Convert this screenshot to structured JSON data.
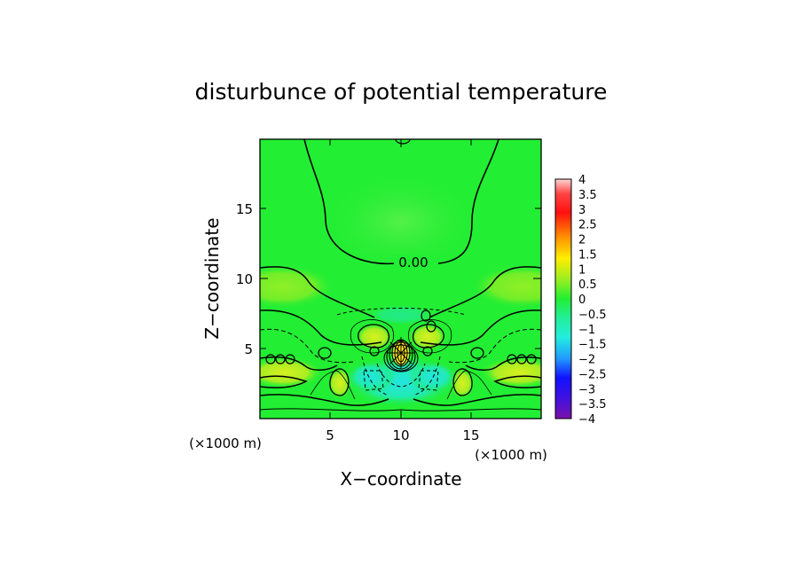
{
  "chart_data": {
    "type": "heatmap",
    "title": "disturbunce of potential temperature",
    "xlabel": "X−coordinate",
    "ylabel": "Z−coordinate",
    "x_unit_label_left": "(×1000 m)",
    "x_unit_label_right": "(×1000 m)",
    "xlim": [
      0,
      20
    ],
    "ylim": [
      0,
      20
    ],
    "x_ticks": [
      5,
      10,
      15
    ],
    "y_ticks": [
      5,
      10,
      15
    ],
    "contour_labels": [
      {
        "text": "0.00",
        "x": 10,
        "z": 11.2
      }
    ],
    "colorbar": {
      "range": [
        -4,
        4
      ],
      "tick_labels": [
        "4",
        "3.5",
        "3",
        "2.5",
        "2",
        "1.5",
        "1",
        "0.5",
        "0",
        "−0.5",
        "−1",
        "−1.5",
        "−2",
        "−2.5",
        "−3",
        "−3.5",
        "−4"
      ]
    },
    "colors": {
      "field_background": "#22ee33",
      "positive_highlight": "#c8f026",
      "negative_highlight": "#22e6c8"
    }
  }
}
